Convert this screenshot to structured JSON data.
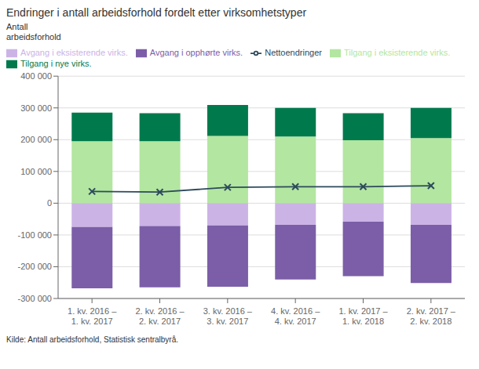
{
  "chart_data": {
    "type": "bar",
    "title": "Endringer i antall arbeidsforhold fordelt etter virksomhetstyper",
    "ylabel": "Antall\narbeidsforhold",
    "annotations": [
      "Kilde: Antall arbeidsforhold, Statistisk sentralbyrå."
    ],
    "categories": [
      "1. kv. 2016 –\n1. kv. 2017",
      "2. kv. 2016 –\n2. kv. 2017",
      "3. kv. 2016 –\n3. kv. 2017",
      "4. kv. 2016 –\n4. kv. 2017",
      "1. kv. 2017 –\n1. kv. 2018",
      "2. kv. 2017 –\n2. kv. 2018"
    ],
    "series": [
      {
        "name": "Tilgang i eksisterende virks.",
        "color": "#b3e6a0",
        "values": [
          195000,
          195000,
          212000,
          210000,
          198000,
          205000
        ]
      },
      {
        "name": "Tilgang i nye virks.",
        "color": "#007a4d",
        "values": [
          90000,
          88000,
          97000,
          90000,
          85000,
          95000
        ]
      },
      {
        "name": "Avgang i eksisterende virks.",
        "color": "#ccb3e6",
        "values": [
          -75000,
          -72000,
          -70000,
          -68000,
          -58000,
          -68000
        ]
      },
      {
        "name": "Avgang i opphørte virks.",
        "color": "#7b5ea7",
        "values": [
          -193000,
          -193000,
          -193000,
          -172000,
          -172000,
          -183000
        ]
      },
      {
        "name": "Nettoendringer",
        "type": "line",
        "color": "#2d4a5c",
        "marker": "x",
        "values": [
          37000,
          35000,
          50000,
          52000,
          52000,
          55000
        ]
      }
    ],
    "stacked": true,
    "ylim": [
      -300000,
      400000
    ],
    "yticks": [
      {
        "value": -300000,
        "label": "-300 000"
      },
      {
        "value": -200000,
        "label": "-200 000"
      },
      {
        "value": -100000,
        "label": "-100 000"
      },
      0,
      {
        "value": 100000,
        "label": "100 000"
      },
      {
        "value": 200000,
        "label": "200 000"
      },
      {
        "value": 300000,
        "label": "300 000"
      },
      {
        "value": 400000,
        "label": "400 000"
      }
    ],
    "grid": true,
    "legend": "upper left"
  }
}
